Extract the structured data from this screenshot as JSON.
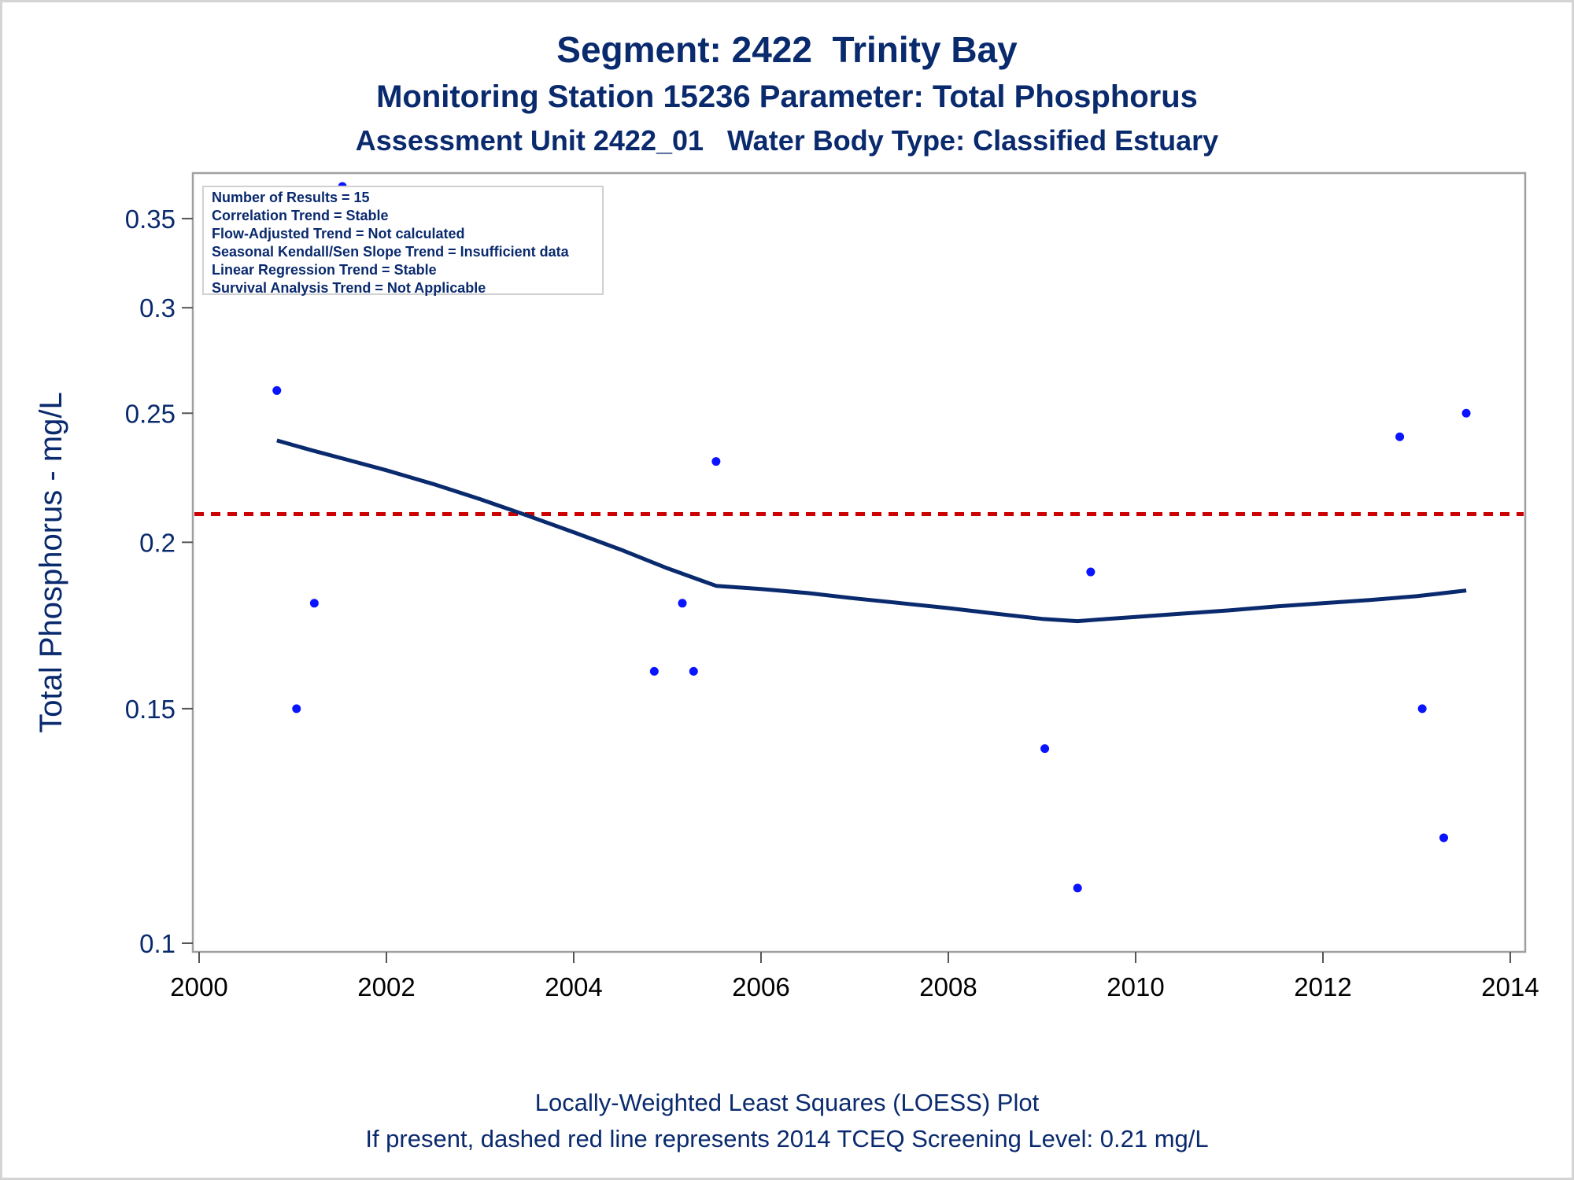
{
  "titles": {
    "line1": "Segment: 2422  Trinity Bay",
    "line2": "Monitoring Station 15236 Parameter: Total Phosphorus",
    "line3": "Assessment Unit 2422_01   Water Body Type: Classified Estuary"
  },
  "stats": [
    "Number of Results = 15",
    "Correlation Trend = Stable",
    "Flow-Adjusted Trend = Not calculated",
    "Seasonal Kendall/Sen Slope Trend = Insufficient data",
    "Linear Regression Trend = Stable",
    "Survival Analysis Trend = Not Applicable"
  ],
  "footnotes": {
    "line1": "Locally-Weighted Least Squares (LOESS) Plot",
    "line2": "If present, dashed red line represents 2014 TCEQ Screening Level: 0.21 mg/L"
  },
  "colors": {
    "points": "#0a14ff",
    "loess": "#0a2a6e",
    "screening": "#cc0000",
    "text": "#0a2a6e",
    "frame": "#a0a0a0"
  },
  "chart_data": {
    "type": "scatter",
    "ylabel": "Total Phosphorus - mg/L",
    "xlabel": "",
    "y_scale": "log",
    "xlim": [
      2000,
      2014
    ],
    "ylim": [
      0.1,
      0.37
    ],
    "x_ticks": [
      "2000",
      "2002",
      "2004",
      "2006",
      "2008",
      "2010",
      "2012",
      "2014"
    ],
    "x_tick_values": [
      2000,
      2002,
      2004,
      2006,
      2008,
      2010,
      2012,
      2014
    ],
    "y_ticks": [
      "0.1",
      "0.15",
      "0.2",
      "0.25",
      "0.3",
      "0.35"
    ],
    "y_tick_values": [
      0.1,
      0.15,
      0.2,
      0.25,
      0.3,
      0.35
    ],
    "points": [
      {
        "x": 2000.83,
        "y": 0.26
      },
      {
        "x": 2001.04,
        "y": 0.15
      },
      {
        "x": 2001.23,
        "y": 0.18
      },
      {
        "x": 2001.53,
        "y": 0.37
      },
      {
        "x": 2004.86,
        "y": 0.16
      },
      {
        "x": 2005.16,
        "y": 0.18
      },
      {
        "x": 2005.28,
        "y": 0.16
      },
      {
        "x": 2005.52,
        "y": 0.23
      },
      {
        "x": 2009.03,
        "y": 0.14
      },
      {
        "x": 2009.38,
        "y": 0.11
      },
      {
        "x": 2009.52,
        "y": 0.19
      },
      {
        "x": 2012.82,
        "y": 0.24
      },
      {
        "x": 2013.06,
        "y": 0.15
      },
      {
        "x": 2013.29,
        "y": 0.12
      },
      {
        "x": 2013.53,
        "y": 0.25
      }
    ],
    "loess": [
      {
        "x": 2000.83,
        "y": 0.2385
      },
      {
        "x": 2001.2,
        "y": 0.2345
      },
      {
        "x": 2001.6,
        "y": 0.2305
      },
      {
        "x": 2002.0,
        "y": 0.2265
      },
      {
        "x": 2002.5,
        "y": 0.2212
      },
      {
        "x": 2003.0,
        "y": 0.2155
      },
      {
        "x": 2003.5,
        "y": 0.2095
      },
      {
        "x": 2004.0,
        "y": 0.2035
      },
      {
        "x": 2004.5,
        "y": 0.1975
      },
      {
        "x": 2005.0,
        "y": 0.1912
      },
      {
        "x": 2005.52,
        "y": 0.1855
      },
      {
        "x": 2006.0,
        "y": 0.1845
      },
      {
        "x": 2006.5,
        "y": 0.1832
      },
      {
        "x": 2007.0,
        "y": 0.1815
      },
      {
        "x": 2007.5,
        "y": 0.18
      },
      {
        "x": 2008.0,
        "y": 0.1785
      },
      {
        "x": 2008.5,
        "y": 0.1768
      },
      {
        "x": 2009.0,
        "y": 0.1752
      },
      {
        "x": 2009.38,
        "y": 0.1745
      },
      {
        "x": 2009.7,
        "y": 0.1752
      },
      {
        "x": 2010.0,
        "y": 0.1758
      },
      {
        "x": 2010.5,
        "y": 0.1768
      },
      {
        "x": 2011.0,
        "y": 0.1778
      },
      {
        "x": 2011.5,
        "y": 0.179
      },
      {
        "x": 2012.0,
        "y": 0.18
      },
      {
        "x": 2012.5,
        "y": 0.181
      },
      {
        "x": 2013.0,
        "y": 0.1822
      },
      {
        "x": 2013.53,
        "y": 0.184
      }
    ],
    "screening_level": 0.21,
    "grid": false
  }
}
